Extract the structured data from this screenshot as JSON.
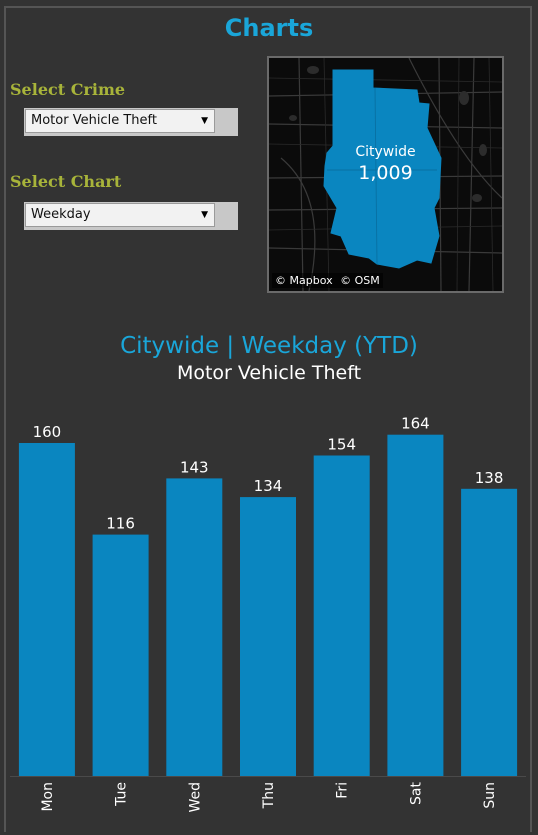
{
  "header": {
    "title": "Charts"
  },
  "controls": {
    "crime_label": "Select Crime",
    "crime_value": "Motor Vehicle Theft",
    "chart_label": "Select Chart",
    "chart_value": "Weekday"
  },
  "map": {
    "area_name": "Citywide",
    "total": "1,009",
    "attribution_mapbox": "© Mapbox",
    "attribution_osm": "© OSM"
  },
  "colors": {
    "accent": "#1aa6d9",
    "label": "#a8b43a",
    "bar": "#0a86c0",
    "background": "#333333"
  },
  "chart_data": {
    "type": "bar",
    "title": "Citywide | Weekday (YTD)",
    "subtitle": "Motor Vehicle Theft",
    "categories": [
      "Mon",
      "Tue",
      "Wed",
      "Thu",
      "Fri",
      "Sat",
      "Sun"
    ],
    "values": [
      160,
      116,
      143,
      134,
      154,
      164,
      138
    ],
    "xlabel": "",
    "ylabel": "",
    "ylim": [
      0,
      175
    ],
    "grid": false,
    "data_labels": true
  }
}
